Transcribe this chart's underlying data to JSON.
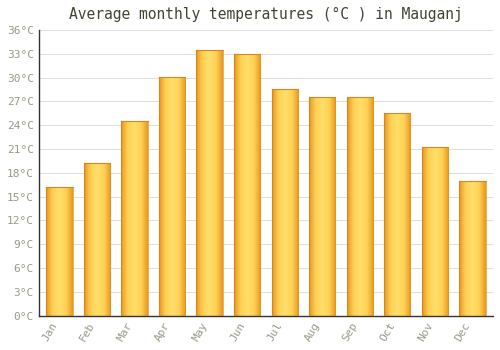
{
  "title": "Average monthly temperatures (°C ) in Mauganj",
  "months": [
    "Jan",
    "Feb",
    "Mar",
    "Apr",
    "May",
    "Jun",
    "Jul",
    "Aug",
    "Sep",
    "Oct",
    "Nov",
    "Dec"
  ],
  "temperatures": [
    16.2,
    19.2,
    24.5,
    30.1,
    33.5,
    33.0,
    28.6,
    27.6,
    27.6,
    25.5,
    21.2,
    17.0
  ],
  "bar_color_left": "#F5A623",
  "bar_color_right": "#FFD966",
  "bar_color_center": "#FFC832",
  "background_color": "#FFFFFF",
  "grid_color": "#DDDDDD",
  "text_color": "#999988",
  "title_color": "#444433",
  "ylim": [
    0,
    36
  ],
  "yticks": [
    0,
    3,
    6,
    9,
    12,
    15,
    18,
    21,
    24,
    27,
    30,
    33,
    36
  ],
  "ytick_labels": [
    "0°C",
    "3°C",
    "6°C",
    "9°C",
    "12°C",
    "15°C",
    "18°C",
    "21°C",
    "24°C",
    "27°C",
    "30°C",
    "33°C",
    "36°C"
  ],
  "figsize": [
    5.0,
    3.5
  ],
  "dpi": 100
}
